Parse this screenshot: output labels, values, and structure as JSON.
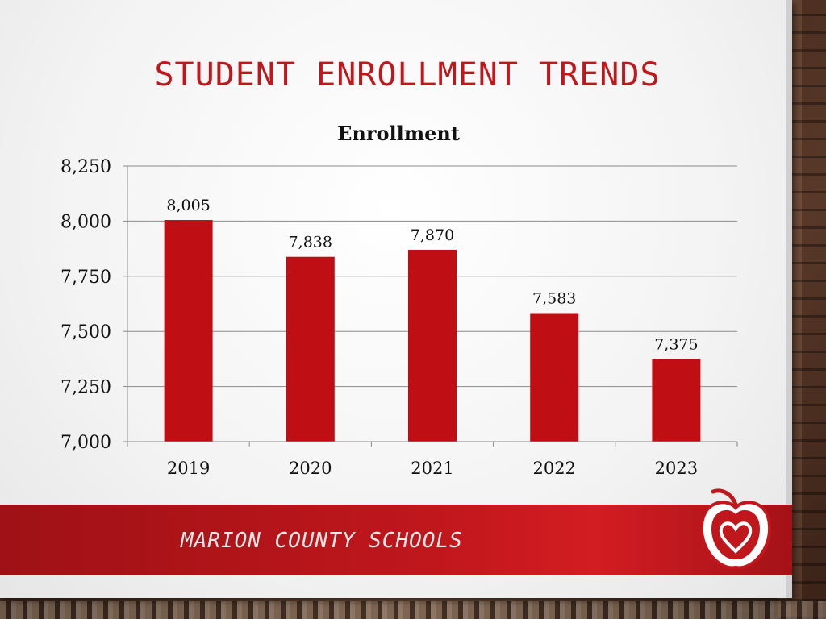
{
  "slide": {
    "title": "STUDENT ENROLLMENT TRENDS",
    "footer": "MARION COUNTY SCHOOLS"
  },
  "colors": {
    "accent": "#c0171c",
    "bar": "#c00f14",
    "footer_band": "#c0171c"
  },
  "icons": {
    "logo": "apple-heart-icon"
  },
  "chart_data": {
    "type": "bar",
    "title": "Enrollment",
    "xlabel": "",
    "ylabel": "",
    "categories": [
      "2019",
      "2020",
      "2021",
      "2022",
      "2023"
    ],
    "values": [
      8005,
      7838,
      7870,
      7583,
      7375
    ],
    "value_labels": [
      "8,005",
      "7,838",
      "7,870",
      "7,583",
      "7,375"
    ],
    "ylim": [
      7000,
      8250
    ],
    "yticks": [
      7000,
      7250,
      7500,
      7750,
      8000,
      8250
    ],
    "ytick_labels": [
      "7,000",
      "7,250",
      "7,500",
      "7,750",
      "8,000",
      "8,250"
    ],
    "grid": true,
    "legend": "none"
  }
}
